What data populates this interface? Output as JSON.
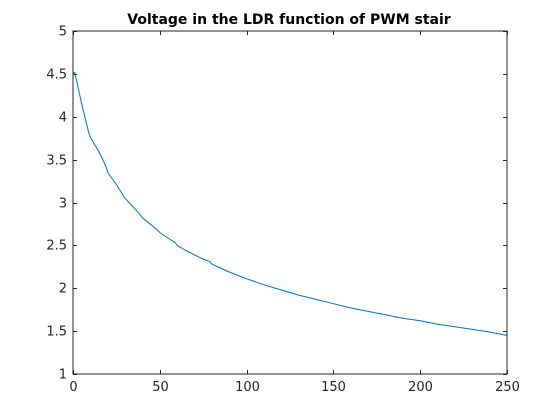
{
  "chart_data": {
    "type": "line",
    "title": "Voltage in the LDR function of PWM stair",
    "xlabel": "",
    "ylabel": "",
    "xlim": [
      0,
      250
    ],
    "ylim": [
      1,
      5
    ],
    "x_ticks": [
      0,
      50,
      100,
      150,
      200,
      250
    ],
    "x_tick_labels": [
      "0",
      "50",
      "100",
      "150",
      "200",
      "250"
    ],
    "y_ticks": [
      1,
      1.5,
      2,
      2.5,
      3,
      3.5,
      4,
      4.5,
      5
    ],
    "y_tick_labels": [
      "1",
      "1.5",
      "2",
      "2.5",
      "3",
      "3.5",
      "4",
      "4.5",
      "5"
    ],
    "grid": false,
    "box": true,
    "series": [
      {
        "color": "#0072BD",
        "x": [
          0,
          0,
          1,
          5,
          9,
          10,
          15,
          19,
          20,
          25,
          29,
          30,
          35,
          39,
          40,
          45,
          49,
          50,
          55,
          59,
          60,
          65,
          70,
          75,
          79,
          80,
          90,
          100,
          110,
          120,
          130,
          140,
          150,
          160,
          170,
          180,
          190,
          200,
          210,
          220,
          230,
          240,
          250
        ],
        "y": [
          4.0,
          4.5,
          4.52,
          4.15,
          3.82,
          3.76,
          3.59,
          3.42,
          3.35,
          3.21,
          3.08,
          3.05,
          2.94,
          2.85,
          2.82,
          2.74,
          2.67,
          2.65,
          2.58,
          2.53,
          2.5,
          2.44,
          2.39,
          2.34,
          2.31,
          2.28,
          2.19,
          2.11,
          2.04,
          1.98,
          1.92,
          1.87,
          1.82,
          1.77,
          1.73,
          1.69,
          1.65,
          1.62,
          1.58,
          1.55,
          1.52,
          1.49,
          1.45
        ]
      }
    ]
  },
  "colors": {
    "axis": "#262626",
    "background": "#ffffff",
    "series_1": "#0072BD"
  }
}
